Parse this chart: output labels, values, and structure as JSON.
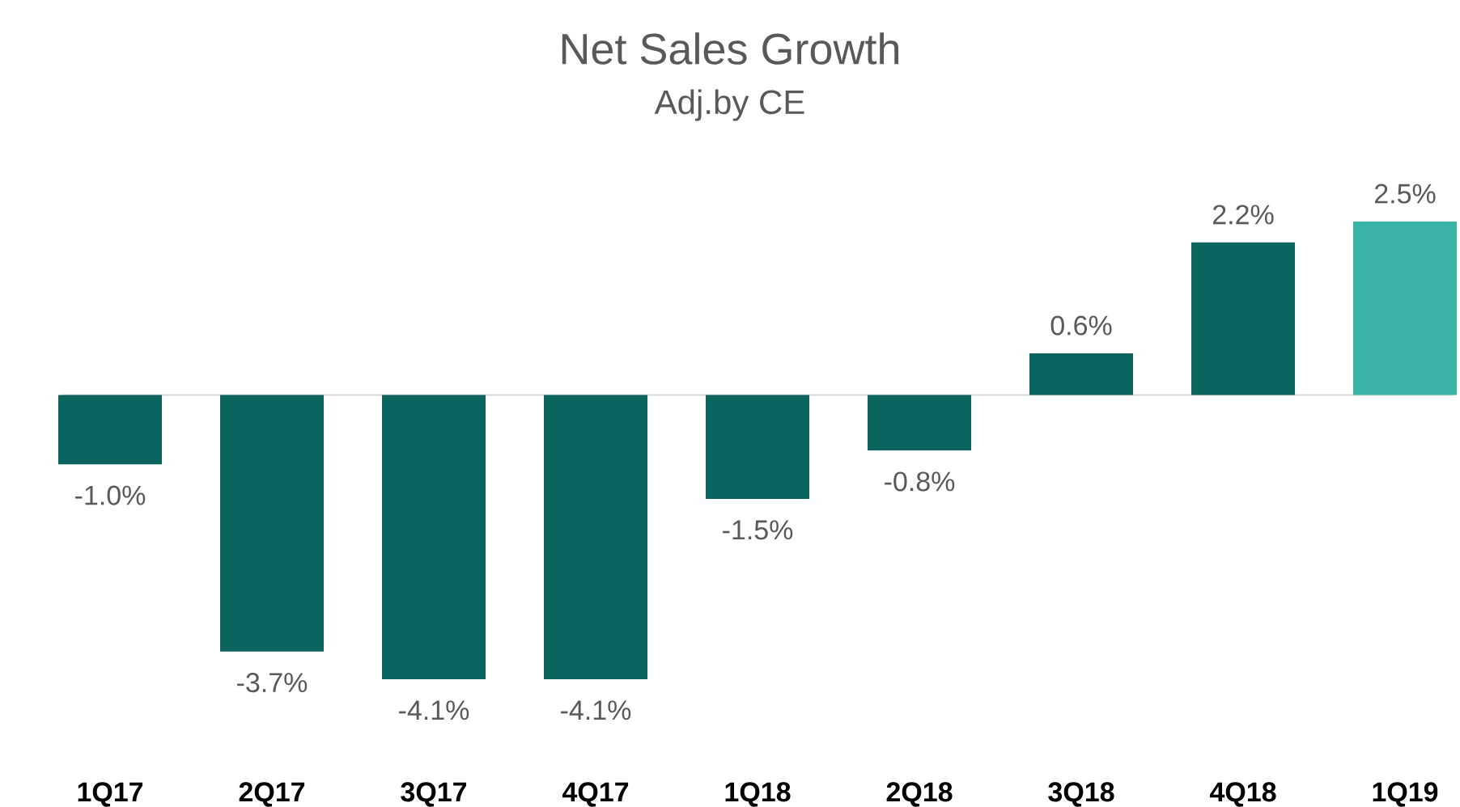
{
  "chart_data": {
    "type": "bar",
    "title": "Net Sales Growth",
    "subtitle": "Adj.by CE",
    "categories": [
      "1Q17",
      "2Q17",
      "3Q17",
      "4Q17",
      "1Q18",
      "2Q18",
      "3Q18",
      "4Q18",
      "1Q19"
    ],
    "values": [
      -1.0,
      -3.7,
      -4.1,
      -4.1,
      -1.5,
      -0.8,
      0.6,
      2.2,
      2.5
    ],
    "colors": [
      "#0b645e",
      "#0b645e",
      "#0b645e",
      "#0b645e",
      "#0b645e",
      "#0b645e",
      "#0b645e",
      "#0b645e",
      "#3bb3a7"
    ],
    "value_labels": [
      "-1.0%",
      "-3.7%",
      "-4.1%",
      "-4.1%",
      "-1.5%",
      "-0.8%",
      "0.6%",
      "2.2%",
      "2.5%"
    ]
  }
}
